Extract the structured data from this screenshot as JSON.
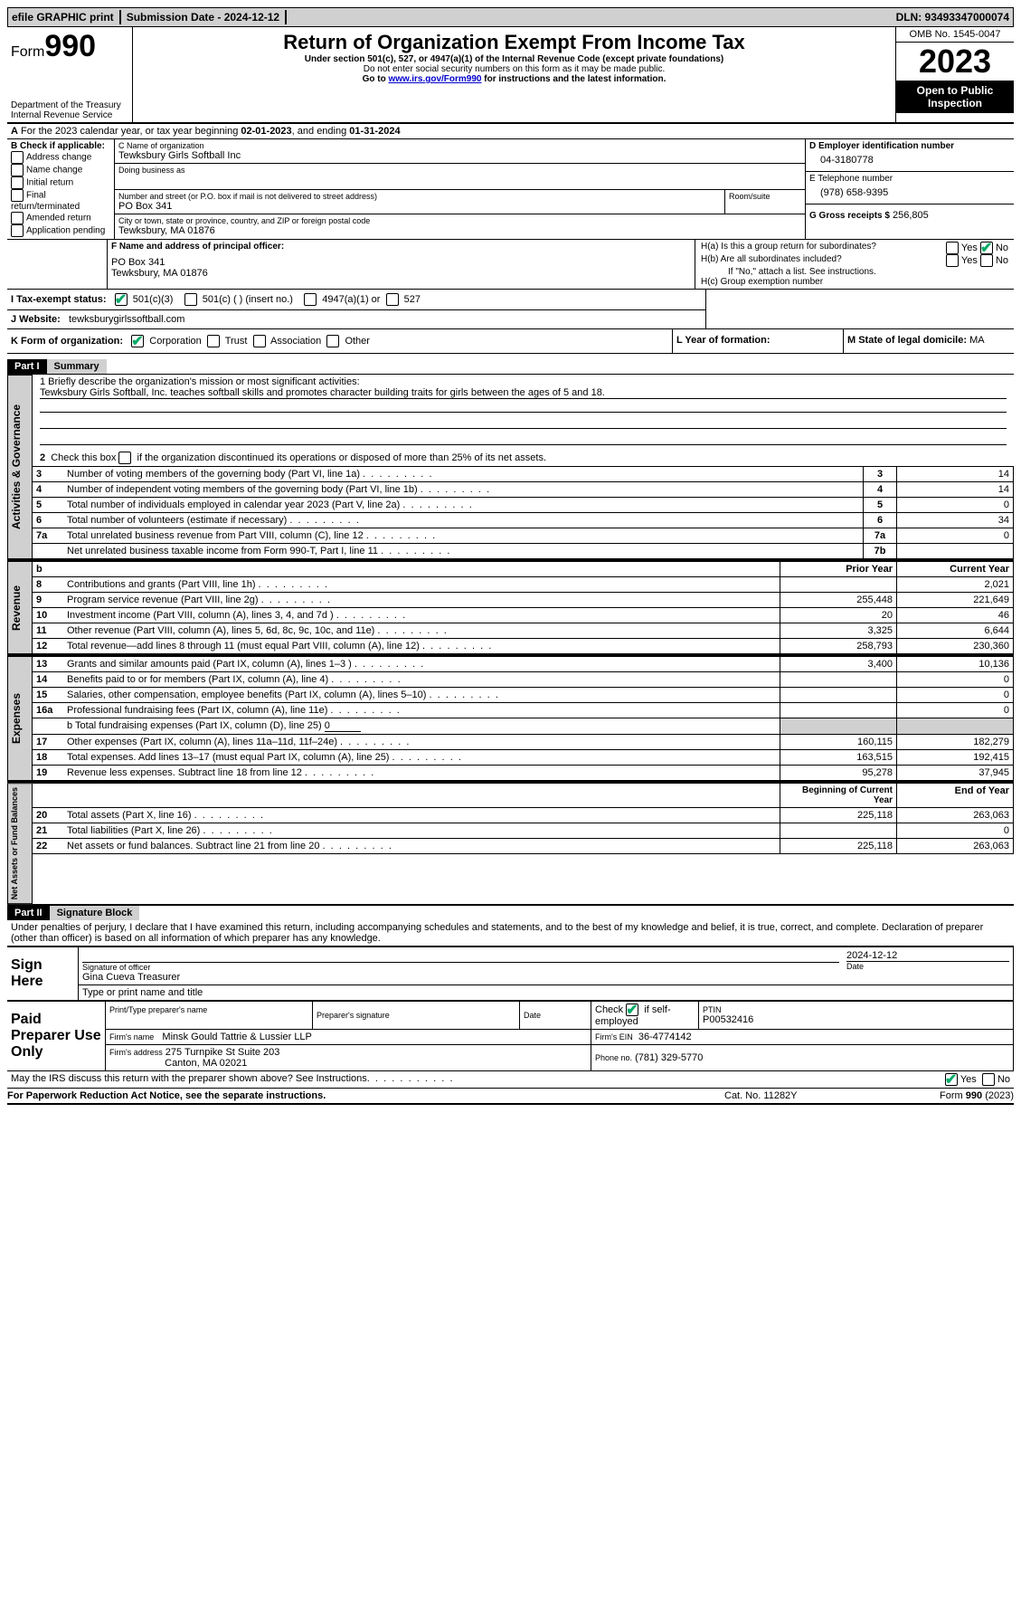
{
  "topbar": {
    "efile": "efile GRAPHIC print",
    "submission_label": "Submission Date - 2024-12-12",
    "dln_label": "DLN: 93493347000074"
  },
  "header": {
    "form_word": "Form",
    "form_num": "990",
    "dept": "Department of the Treasury",
    "irs": "Internal Revenue Service",
    "title": "Return of Organization Exempt From Income Tax",
    "subtitle": "Under section 501(c), 527, or 4947(a)(1) of the Internal Revenue Code (except private foundations)",
    "warn": "Do not enter social security numbers on this form as it may be made public.",
    "goto_pre": "Go to ",
    "goto_link": "www.irs.gov/Form990",
    "goto_post": " for instructions and the latest information.",
    "omb": "OMB No. 1545-0047",
    "year": "2023",
    "open": "Open to Public Inspection"
  },
  "lineA": {
    "pre": "For the 2023 calendar year, or tax year beginning ",
    "begin": "02-01-2023",
    "mid": ", and ending ",
    "end": "01-31-2024"
  },
  "boxB": {
    "label": "B Check if applicable:",
    "items": [
      "Address change",
      "Name change",
      "Initial return",
      "Final return/terminated",
      "Amended return",
      "Application pending"
    ]
  },
  "boxC": {
    "label": "C Name of organization",
    "name": "Tewksbury Girls Softball Inc",
    "dba_label": "Doing business as",
    "street_label": "Number and street (or P.O. box if mail is not delivered to street address)",
    "room_label": "Room/suite",
    "street": "PO Box 341",
    "city_label": "City or town, state or province, country, and ZIP or foreign postal code",
    "city": "Tewksbury, MA  01876"
  },
  "boxD": {
    "label": "D Employer identification number",
    "value": "04-3180778"
  },
  "boxE": {
    "label": "E Telephone number",
    "value": "(978) 658-9395"
  },
  "boxG": {
    "label": "G Gross receipts $",
    "value": "256,805"
  },
  "boxF": {
    "label": "F Name and address of principal officer:",
    "line1": "PO Box 341",
    "line2": "Tewksbury, MA  01876"
  },
  "boxH": {
    "a_label": "H(a)  Is this a group return for subordinates?",
    "b_label": "H(b)  Are all subordinates included?",
    "b_note": "If \"No,\" attach a list. See instructions.",
    "c_label": "H(c)  Group exemption number",
    "yes": "Yes",
    "no": "No"
  },
  "taxexempt": {
    "label": "I   Tax-exempt status:",
    "c3": "501(c)(3)",
    "c": "501(c) (  ) (insert no.)",
    "a1": "4947(a)(1) or",
    "s527": "527"
  },
  "website": {
    "label": "J   Website:",
    "value": "tewksburygirlssoftball.com"
  },
  "formorg": {
    "label": "K Form of organization:",
    "corp": "Corporation",
    "trust": "Trust",
    "assoc": "Association",
    "other": "Other"
  },
  "yearform": {
    "label": "L Year of formation:"
  },
  "domicile": {
    "label": "M State of legal domicile:",
    "value": "MA"
  },
  "part1": {
    "bar": "Part I",
    "title": "Summary",
    "mission_label": "1   Briefly describe the organization's mission or most significant activities:",
    "mission": "Tewksbury Girls Softball, Inc. teaches softball skills and promotes character building traits for girls between the ages of 5 and 18.",
    "line2": "2   Check this box    if the organization discontinued its operations or disposed of more than 25% of its net assets.",
    "lines_gov": [
      {
        "n": "3",
        "t": "Number of voting members of the governing body (Part VI, line 1a)",
        "nl": "3",
        "v": "14"
      },
      {
        "n": "4",
        "t": "Number of independent voting members of the governing body (Part VI, line 1b)",
        "nl": "4",
        "v": "14"
      },
      {
        "n": "5",
        "t": "Total number of individuals employed in calendar year 2023 (Part V, line 2a)",
        "nl": "5",
        "v": "0"
      },
      {
        "n": "6",
        "t": "Total number of volunteers (estimate if necessary)",
        "nl": "6",
        "v": "34"
      },
      {
        "n": "7a",
        "t": "Total unrelated business revenue from Part VIII, column (C), line 12",
        "nl": "7a",
        "v": "0"
      },
      {
        "n": "",
        "t": "Net unrelated business taxable income from Form 990-T, Part I, line 11",
        "nl": "7b",
        "v": ""
      }
    ],
    "col_prior": "Prior Year",
    "col_current": "Current Year",
    "revenue": [
      {
        "n": "8",
        "t": "Contributions and grants (Part VIII, line 1h)",
        "p": "",
        "c": "2,021"
      },
      {
        "n": "9",
        "t": "Program service revenue (Part VIII, line 2g)",
        "p": "255,448",
        "c": "221,649"
      },
      {
        "n": "10",
        "t": "Investment income (Part VIII, column (A), lines 3, 4, and 7d )",
        "p": "20",
        "c": "46"
      },
      {
        "n": "11",
        "t": "Other revenue (Part VIII, column (A), lines 5, 6d, 8c, 9c, 10c, and 11e)",
        "p": "3,325",
        "c": "6,644"
      },
      {
        "n": "12",
        "t": "Total revenue—add lines 8 through 11 (must equal Part VIII, column (A), line 12)",
        "p": "258,793",
        "c": "230,360"
      }
    ],
    "expenses": [
      {
        "n": "13",
        "t": "Grants and similar amounts paid (Part IX, column (A), lines 1–3 )",
        "p": "3,400",
        "c": "10,136"
      },
      {
        "n": "14",
        "t": "Benefits paid to or for members (Part IX, column (A), line 4)",
        "p": "",
        "c": "0"
      },
      {
        "n": "15",
        "t": "Salaries, other compensation, employee benefits (Part IX, column (A), lines 5–10)",
        "p": "",
        "c": "0"
      },
      {
        "n": "16a",
        "t": "Professional fundraising fees (Part IX, column (A), line 11e)",
        "p": "",
        "c": "0"
      }
    ],
    "line16b_pre": "b   Total fundraising expenses (Part IX, column (D), line 25) ",
    "line16b_val": "0",
    "expenses2": [
      {
        "n": "17",
        "t": "Other expenses (Part IX, column (A), lines 11a–11d, 11f–24e)",
        "p": "160,115",
        "c": "182,279"
      },
      {
        "n": "18",
        "t": "Total expenses. Add lines 13–17 (must equal Part IX, column (A), line 25)",
        "p": "163,515",
        "c": "192,415"
      },
      {
        "n": "19",
        "t": "Revenue less expenses. Subtract line 18 from line 12",
        "p": "95,278",
        "c": "37,945"
      }
    ],
    "col_begin": "Beginning of Current Year",
    "col_end": "End of Year",
    "netassets": [
      {
        "n": "20",
        "t": "Total assets (Part X, line 16)",
        "p": "225,118",
        "c": "263,063"
      },
      {
        "n": "21",
        "t": "Total liabilities (Part X, line 26)",
        "p": "",
        "c": "0"
      },
      {
        "n": "22",
        "t": "Net assets or fund balances. Subtract line 21 from line 20",
        "p": "225,118",
        "c": "263,063"
      }
    ],
    "vlabels": {
      "gov": "Activities & Governance",
      "rev": "Revenue",
      "exp": "Expenses",
      "net": "Net Assets or Fund Balances"
    }
  },
  "part2": {
    "bar": "Part II",
    "title": "Signature Block",
    "decl": "Under penalties of perjury, I declare that I have examined this return, including accompanying schedules and statements, and to the best of my knowledge and belief, it is true, correct, and complete. Declaration of preparer (other than officer) is based on all information of which preparer has any knowledge."
  },
  "sign": {
    "label": "Sign Here",
    "sig_label": "Signature of officer",
    "date_label": "Date",
    "date": "2024-12-12",
    "name": "Gina Cueva Treasurer",
    "name_label": "Type or print name and title"
  },
  "paid": {
    "label": "Paid Preparer Use Only",
    "prep_name_label": "Print/Type preparer's name",
    "prep_sig_label": "Preparer's signature",
    "date_label": "Date",
    "check_label": "Check",
    "if_self": "if self-employed",
    "ptin_label": "PTIN",
    "ptin": "P00532416",
    "firm_name_label": "Firm's name",
    "firm_name": "Minsk Gould Tattrie & Lussier LLP",
    "firm_ein_label": "Firm's EIN",
    "firm_ein": "36-4774142",
    "firm_addr_label": "Firm's address",
    "firm_addr1": "275 Turnpike St Suite 203",
    "firm_addr2": "Canton, MA  02021",
    "phone_label": "Phone no.",
    "phone": "(781) 329-5770"
  },
  "footer": {
    "discuss": "May the IRS discuss this return with the preparer shown above? See Instructions.",
    "yes": "Yes",
    "no": "No",
    "pra": "For Paperwork Reduction Act Notice, see the separate instructions.",
    "cat": "Cat. No. 11282Y",
    "form": "Form 990 (2023)"
  }
}
